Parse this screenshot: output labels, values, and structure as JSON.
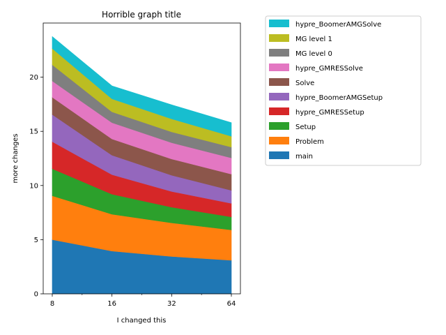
{
  "chart_data": {
    "type": "area",
    "stacked": true,
    "title": "Horrible graph title",
    "xlabel": "I changed this",
    "ylabel": "more changes",
    "x": [
      8,
      16,
      32,
      64
    ],
    "x_scale": "log2",
    "x_tick_labels": [
      "8",
      "16",
      "32",
      "64"
    ],
    "y_ticks": [
      0,
      5,
      10,
      15,
      20
    ],
    "ylim": [
      0,
      25
    ],
    "grid": false,
    "legend_placement": "outside-right-top",
    "series": [
      {
        "name": "main",
        "color": "#1f77b4",
        "values": [
          5.0,
          3.95,
          3.45,
          3.1
        ]
      },
      {
        "name": "Problem",
        "color": "#ff7f0e",
        "values": [
          4.05,
          3.4,
          3.1,
          2.8
        ]
      },
      {
        "name": "Setup",
        "color": "#2ca02c",
        "values": [
          2.5,
          1.85,
          1.45,
          1.2
        ]
      },
      {
        "name": "hypre_GMRESSetup",
        "color": "#d62728",
        "values": [
          2.5,
          1.8,
          1.45,
          1.25
        ]
      },
      {
        "name": "hypre_BoomerAMGSetup",
        "color": "#9467bd",
        "values": [
          2.5,
          1.8,
          1.5,
          1.2
        ]
      },
      {
        "name": "Solve",
        "color": "#8c564b",
        "values": [
          1.6,
          1.5,
          1.5,
          1.5
        ]
      },
      {
        "name": "hypre_GMRESSolve",
        "color": "#e377c2",
        "values": [
          1.5,
          1.5,
          1.5,
          1.5
        ]
      },
      {
        "name": "MG level 0",
        "color": "#7f7f7f",
        "values": [
          1.5,
          1.0,
          1.0,
          1.0
        ]
      },
      {
        "name": "MG level 1",
        "color": "#bcbd22",
        "values": [
          1.5,
          1.2,
          1.2,
          1.0
        ]
      },
      {
        "name": "hypre_BoomerAMGSolve",
        "color": "#17becf",
        "values": [
          1.1,
          1.2,
          1.3,
          1.25
        ]
      }
    ]
  }
}
